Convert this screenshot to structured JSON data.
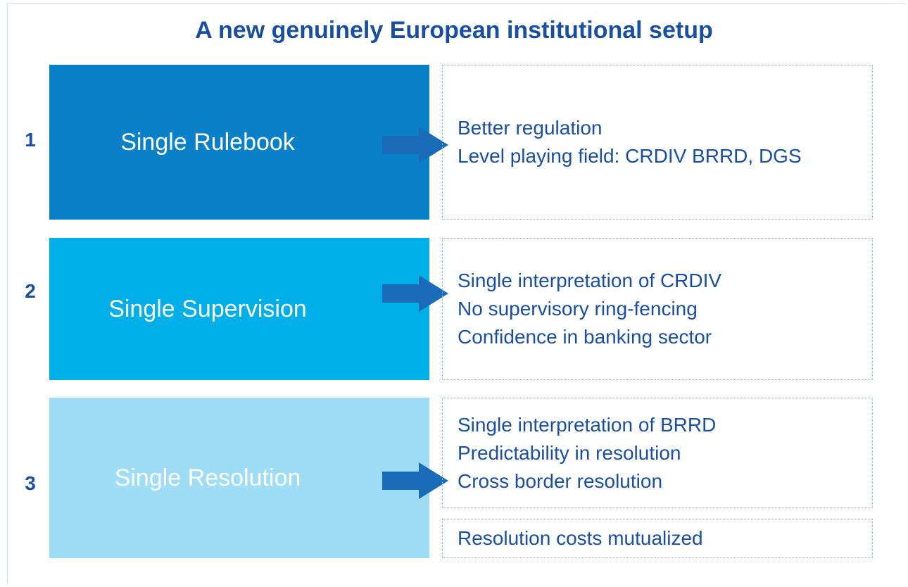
{
  "title": "A new genuinely European institutional setup",
  "rows": [
    {
      "number": "1",
      "label": "Single Rulebook",
      "items": [
        "Better regulation",
        "Level playing field: CRDIV BRRD, DGS"
      ]
    },
    {
      "number": "2",
      "label": "Single Supervision",
      "items": [
        "Single interpretation of CRDIV",
        "No supervisory ring-fencing",
        "Confidence in banking sector"
      ]
    },
    {
      "number": "3",
      "label": "Single Resolution",
      "items": [
        "Single interpretation of BRRD",
        "Predictability in resolution",
        "Cross border resolution"
      ]
    }
  ],
  "note": "Resolution costs mutualized"
}
